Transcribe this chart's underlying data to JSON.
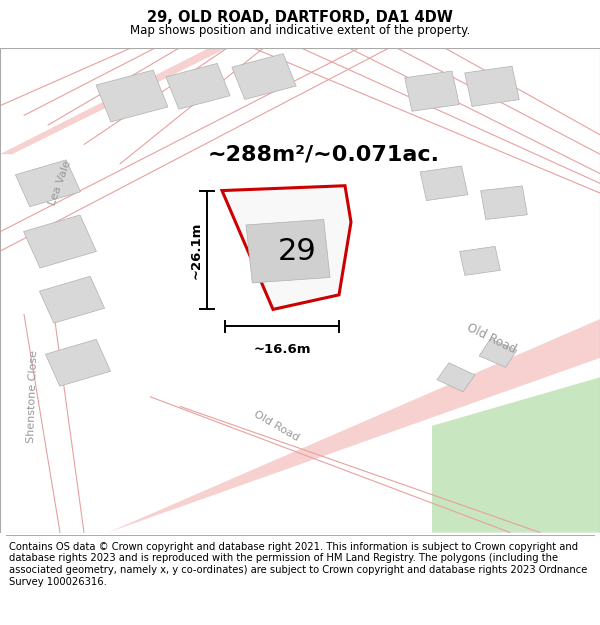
{
  "title": "29, OLD ROAD, DARTFORD, DA1 4DW",
  "subtitle": "Map shows position and indicative extent of the property.",
  "footer": "Contains OS data © Crown copyright and database right 2021. This information is subject to Crown copyright and database rights 2023 and is reproduced with the permission of HM Land Registry. The polygons (including the associated geometry, namely x, y co-ordinates) are subject to Crown copyright and database rights 2023 Ordnance Survey 100026316.",
  "area_label": "~288m²/~0.071ac.",
  "number_label": "29",
  "width_label": "~16.6m",
  "height_label": "~26.1m",
  "map_bg": "#ffffff",
  "road_fill": "#f7d0d0",
  "building_fill": "#d8d8d8",
  "building_edge": "#b0b0b0",
  "highlight_color": "#cc0000",
  "highlight_fill": "#ffffff",
  "green_fill": "#c8e6c0",
  "title_fontsize": 10.5,
  "subtitle_fontsize": 8.5,
  "footer_fontsize": 7.2,
  "area_fontsize": 16,
  "number_fontsize": 22,
  "dim_fontsize": 9.5,
  "street_fontsize": 8
}
